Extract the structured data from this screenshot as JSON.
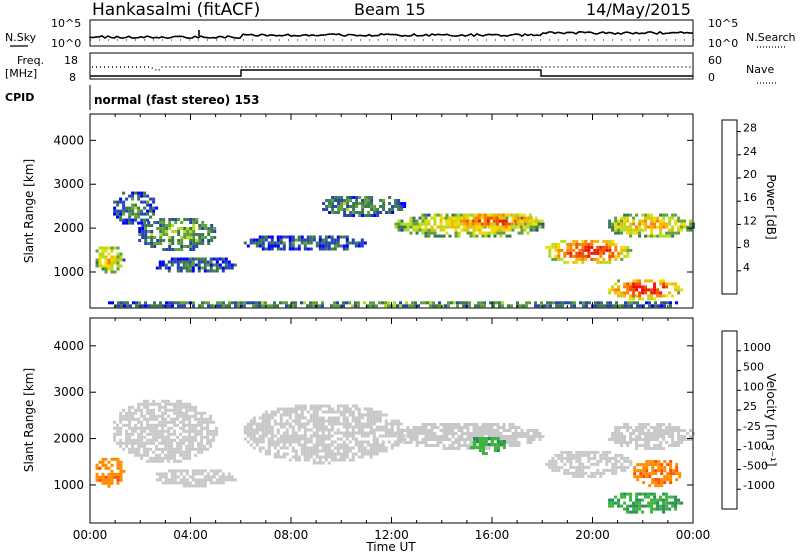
{
  "header": {
    "station": "Hankasalmi (fitACF)",
    "beam": "Beam 15",
    "date": "14/May/2015"
  },
  "panels": {
    "nsky_label": "N.Sky",
    "nsky_ticks": [
      "10^5",
      "10^0"
    ],
    "nsearch_label": "N.Search",
    "nsearch_ticks": [
      "10^5",
      "10^0"
    ],
    "freq_label_1": "Freq.",
    "freq_label_2": "[MHz]",
    "freq_ticks": [
      "18",
      "8"
    ],
    "nave_label": "Nave",
    "nave_ticks": [
      "60",
      "0"
    ],
    "cpid_label": "CPID",
    "cpid_text": "normal (fast stereo) 153"
  },
  "colors": {
    "power": [
      "#0000ff",
      "#2346b4",
      "#3c7850",
      "#5fa03c",
      "#b4dc1e",
      "#f0dc00",
      "#fab400",
      "#fa8200",
      "#f05000",
      "#e61e00",
      "#ff0000"
    ],
    "velocity": [
      "#ff0000",
      "#ff5000",
      "#ff8c00",
      "#ffbe3c",
      "#c8c8c8",
      "#c8c8c8",
      "#8cd23c",
      "#3cb43c",
      "#2a8c5a",
      "#1e5aa0",
      "#0028c8"
    ]
  },
  "chart_data": [
    {
      "type": "heatmap",
      "title": "Power",
      "xlabel": "",
      "ylabel": "Slant Range [km]",
      "x_ticks": [
        "00:00",
        "04:00",
        "08:00",
        "12:00",
        "16:00",
        "20:00",
        "00:00"
      ],
      "y_ticks": [
        "1000",
        "2000",
        "3000",
        "4000"
      ],
      "xlim_hours": [
        0,
        24
      ],
      "ylim_km": [
        180,
        4600
      ],
      "colorbar": {
        "label": "Power [dB]",
        "range": [
          0,
          30
        ],
        "ticks": [
          "4",
          "8",
          "12",
          "16",
          "20",
          "24",
          "28"
        ]
      },
      "echo_regions": [
        {
          "t0": 0.1,
          "t1": 1.3,
          "r0": 1000,
          "r1": 1650,
          "level": 0.55
        },
        {
          "t0": 0.8,
          "t1": 2.6,
          "r0": 2100,
          "r1": 2900,
          "level": 0.25
        },
        {
          "t0": 1.8,
          "t1": 5.0,
          "r0": 1500,
          "r1": 2300,
          "level": 0.35
        },
        {
          "t0": 2.5,
          "t1": 5.8,
          "r0": 1000,
          "r1": 1400,
          "level": 0.2
        },
        {
          "t0": 6.0,
          "t1": 11.0,
          "r0": 1500,
          "r1": 1900,
          "level": 0.2
        },
        {
          "t0": 9.0,
          "t1": 12.5,
          "r0": 2300,
          "r1": 2800,
          "level": 0.3
        },
        {
          "t0": 12.0,
          "t1": 18.0,
          "r0": 1800,
          "r1": 2400,
          "level": 0.55
        },
        {
          "t0": 14.0,
          "t1": 18.0,
          "r0": 2000,
          "r1": 2400,
          "level": 0.8
        },
        {
          "t0": 18.0,
          "t1": 21.5,
          "r0": 1200,
          "r1": 1800,
          "level": 0.85
        },
        {
          "t0": 20.5,
          "t1": 24.0,
          "r0": 1800,
          "r1": 2400,
          "level": 0.6
        },
        {
          "t0": 20.5,
          "t1": 23.5,
          "r0": 400,
          "r1": 900,
          "level": 0.9
        },
        {
          "t0": 0.0,
          "t1": 24.0,
          "r0": 200,
          "r1": 400,
          "level": 0.3
        }
      ]
    },
    {
      "type": "heatmap",
      "title": "Velocity",
      "xlabel": "Time UT",
      "ylabel": "Slant Range [km]",
      "x_ticks": [
        "00:00",
        "04:00",
        "08:00",
        "12:00",
        "16:00",
        "20:00",
        "00:00"
      ],
      "y_ticks": [
        "1000",
        "2000",
        "3000",
        "4000"
      ],
      "xlim_hours": [
        0,
        24
      ],
      "ylim_km": [
        180,
        4600
      ],
      "colorbar": {
        "label": "Velocity [m s⁻¹]",
        "ticks": [
          "1000",
          "500",
          "100",
          "25",
          "-25",
          "-100",
          "-500",
          "-1000"
        ]
      },
      "echo_regions": [
        {
          "t0": 0.1,
          "t1": 1.3,
          "r0": 1000,
          "r1": 1650,
          "level": 0.22
        },
        {
          "t0": 0.8,
          "t1": 5.0,
          "r0": 1500,
          "r1": 2900,
          "level": 0.5
        },
        {
          "t0": 2.5,
          "t1": 5.8,
          "r0": 1000,
          "r1": 1400,
          "level": 0.5
        },
        {
          "t0": 6.0,
          "t1": 12.5,
          "r0": 1500,
          "r1": 2800,
          "level": 0.5
        },
        {
          "t0": 12.0,
          "t1": 18.0,
          "r0": 1800,
          "r1": 2400,
          "level": 0.5
        },
        {
          "t0": 15.0,
          "t1": 16.5,
          "r0": 1700,
          "r1": 2100,
          "level": 0.7
        },
        {
          "t0": 18.0,
          "t1": 21.5,
          "r0": 1200,
          "r1": 1800,
          "level": 0.5
        },
        {
          "t0": 20.5,
          "t1": 24.0,
          "r0": 1800,
          "r1": 2400,
          "level": 0.5
        },
        {
          "t0": 21.5,
          "t1": 23.5,
          "r0": 1000,
          "r1": 1600,
          "level": 0.2
        },
        {
          "t0": 20.5,
          "t1": 23.5,
          "r0": 400,
          "r1": 900,
          "level": 0.72
        }
      ]
    }
  ]
}
